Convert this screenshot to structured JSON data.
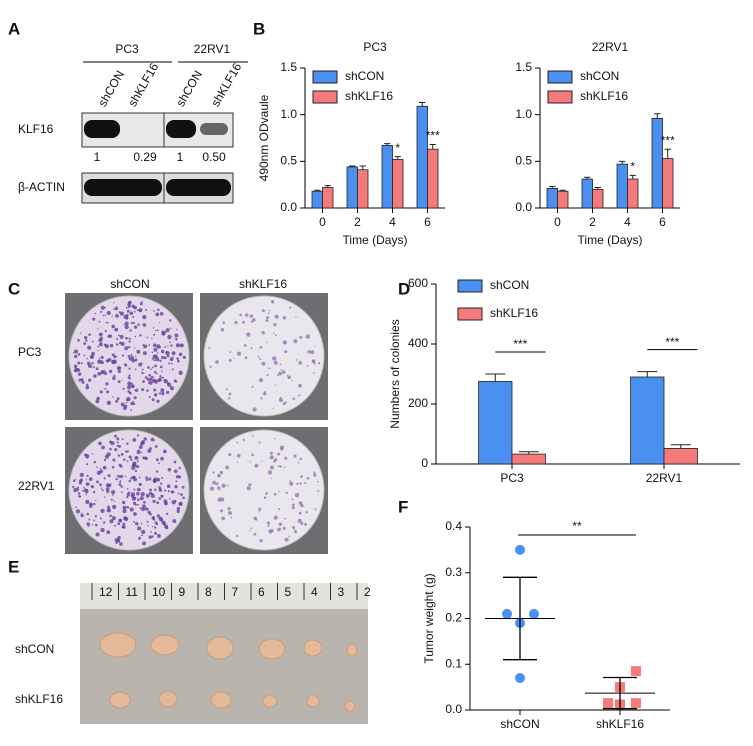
{
  "panel_labels": [
    "A",
    "B",
    "C",
    "D",
    "E",
    "F"
  ],
  "blot": {
    "cell_lines": [
      "PC3",
      "22RV1"
    ],
    "lanes": [
      "shCON",
      "shKLF16",
      "shCON",
      "shKLF16"
    ],
    "rows": [
      "KLF16",
      "β-ACTIN"
    ],
    "ratios": [
      "1",
      "0.29",
      "1",
      "0.50"
    ]
  },
  "colony": {
    "columns": [
      "shCON",
      "shKLF16"
    ],
    "rows": [
      "PC3",
      "22RV1"
    ]
  },
  "tumor": {
    "rows": [
      "shCON",
      "shKLF16"
    ],
    "ruler": [
      "12",
      "11",
      "10",
      "9",
      "8",
      "7",
      "6",
      "5",
      "4",
      "3",
      "2"
    ]
  },
  "chart_data": [
    {
      "type": "bar",
      "title": "PC3",
      "x_label": "Time (Days)",
      "y_label": "490nm ODvaule",
      "categories": [
        "0",
        "2",
        "4",
        "6"
      ],
      "series": [
        {
          "name": "shCON",
          "color": "#4b8ff0",
          "values": [
            0.18,
            0.44,
            0.67,
            1.09
          ],
          "errors": [
            0.01,
            0.01,
            0.02,
            0.04
          ]
        },
        {
          "name": "shKLF16",
          "color": "#f57b7b",
          "values": [
            0.22,
            0.41,
            0.52,
            0.63
          ],
          "errors": [
            0.02,
            0.04,
            0.03,
            0.05
          ]
        }
      ],
      "significance": [
        null,
        null,
        "*",
        "***"
      ],
      "ylim": [
        0,
        1.5
      ],
      "yticks": [
        {
          "value": 0,
          "label": "0.0"
        },
        0.5,
        {
          "value": 1,
          "label": "1.0"
        },
        1.5
      ]
    },
    {
      "type": "bar",
      "title": "22RV1",
      "x_label": "Time (Days)",
      "categories": [
        "0",
        "2",
        "4",
        "6"
      ],
      "series": [
        {
          "name": "shCON",
          "color": "#4b8ff0",
          "values": [
            0.21,
            0.31,
            0.47,
            0.96
          ],
          "errors": [
            0.02,
            0.02,
            0.03,
            0.05
          ]
        },
        {
          "name": "shKLF16",
          "color": "#f57b7b",
          "values": [
            0.18,
            0.2,
            0.31,
            0.53
          ],
          "errors": [
            0.01,
            0.02,
            0.04,
            0.1
          ]
        }
      ],
      "significance": [
        null,
        null,
        "*",
        "***"
      ],
      "ylim": [
        0,
        1.5
      ],
      "yticks": [
        {
          "value": 0,
          "label": "0.0"
        },
        0.5,
        {
          "value": 1,
          "label": "1.0"
        },
        1.5
      ]
    },
    {
      "type": "bar",
      "y_label": "Numbers of colonies",
      "categories": [
        "PC3",
        "22RV1"
      ],
      "series": [
        {
          "name": "shCON",
          "color": "#4b8ff0",
          "values": [
            275,
            290
          ],
          "errors": [
            25,
            18
          ]
        },
        {
          "name": "shKLF16",
          "color": "#f57b7b",
          "values": [
            33,
            52
          ],
          "errors": [
            8,
            12
          ]
        }
      ],
      "significance": [
        "***",
        "***"
      ],
      "ylim": [
        0,
        600
      ],
      "yticks": [
        0,
        200,
        400,
        600
      ]
    },
    {
      "type": "scatter",
      "y_label": "Tumor weight (g)",
      "categories": [
        "shCON",
        "shKLF16"
      ],
      "series": [
        {
          "color": "#4b8ff0",
          "marker": "circle",
          "values": [
            0.35,
            0.21,
            0.21,
            0.19,
            0.07
          ],
          "mean": 0.2,
          "sd": 0.09
        },
        {
          "color": "#f57b7b",
          "marker": "square",
          "values": [
            0.085,
            0.05,
            0.015,
            0.012,
            0.015
          ],
          "mean": 0.037,
          "sd": 0.034
        }
      ],
      "significance": "**",
      "ylim": [
        0,
        0.4
      ],
      "yticks": [
        {
          "value": 0,
          "label": "0.0"
        },
        0.1,
        0.2,
        0.3,
        0.4
      ]
    }
  ]
}
